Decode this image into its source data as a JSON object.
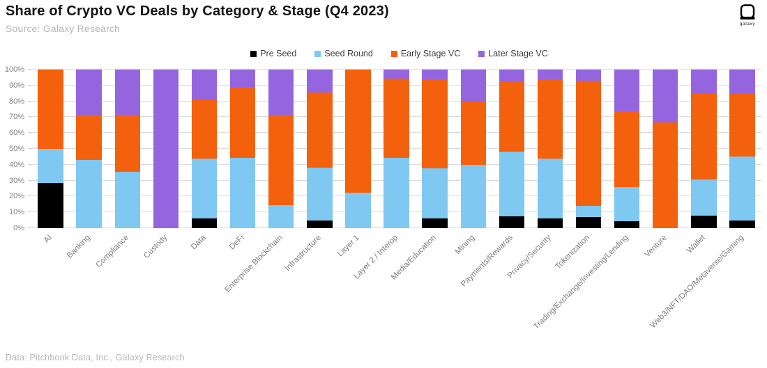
{
  "header": {
    "title": "Share of Crypto VC Deals by Category & Stage (Q4 2023)",
    "source": "Source: Galaxy Research",
    "logo_text": "galaxy"
  },
  "footer": {
    "note": "Data: Pitchbook Data, Inc., Galaxy Research"
  },
  "chart_data": {
    "type": "bar",
    "stacked": true,
    "units": "percent_share",
    "title": "Share of Crypto VC Deals by Category & Stage (Q4 2023)",
    "grid": "horizontal",
    "legend_position": "top-center",
    "ylim": [
      0,
      100
    ],
    "y_tick_labels": [
      "0%",
      "10%",
      "20%",
      "30%",
      "40%",
      "50%",
      "60%",
      "70%",
      "80%",
      "90%",
      "100%"
    ],
    "categories": [
      "AI",
      "Banking",
      "Compliance",
      "Custody",
      "Data",
      "DeFi",
      "Enterprise Blockchain",
      "Infrastructure",
      "Layer 1",
      "Layer 2 / Interop",
      "Media/Education",
      "Mining",
      "Payments/Rewards",
      "Privacy/Security",
      "Tokenization",
      "Trading/Exchange/Investing/Lending",
      "Venture",
      "Wallet",
      "Web3/NFT/DAO/Metaverse/Gaming"
    ],
    "series": [
      {
        "name": "Pre Seed",
        "color": "#000000",
        "values": [
          28.6,
          0,
          0,
          0,
          6.3,
          0,
          0,
          4.8,
          0,
          0,
          6.3,
          0,
          7.4,
          6.3,
          7.1,
          4.3,
          0,
          7.7,
          5.0
        ]
      },
      {
        "name": "Seed Round",
        "color": "#7EC8F2",
        "values": [
          21.4,
          42.9,
          35.7,
          0,
          37.5,
          44.4,
          14.3,
          33.3,
          22.2,
          44.4,
          31.3,
          40.0,
          40.7,
          37.5,
          7.1,
          21.7,
          0,
          23.1,
          40.0
        ]
      },
      {
        "name": "Early Stage VC",
        "color": "#F4610C",
        "values": [
          50.0,
          28.6,
          35.7,
          0,
          37.5,
          44.4,
          57.1,
          47.6,
          77.8,
          50.0,
          56.3,
          40.0,
          44.4,
          50.0,
          78.6,
          47.8,
          66.7,
          53.8,
          40.0
        ]
      },
      {
        "name": "Later Stage VC",
        "color": "#9565E0",
        "values": [
          0,
          28.6,
          28.6,
          100.0,
          18.8,
          11.1,
          28.6,
          14.3,
          0,
          5.6,
          6.3,
          20.0,
          7.4,
          6.3,
          7.1,
          26.1,
          33.3,
          15.4,
          15.0
        ]
      }
    ]
  }
}
